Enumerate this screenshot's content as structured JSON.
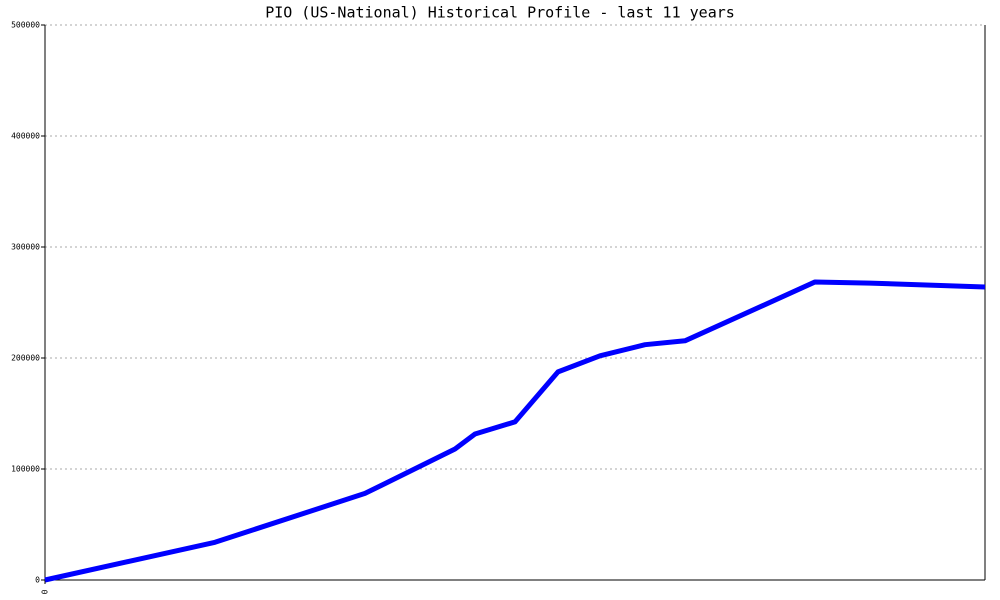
{
  "chart_data": {
    "type": "line",
    "title": "PIO (US-National) Historical Profile - last 11 years",
    "x": [
      0,
      170,
      320,
      410,
      430,
      470,
      513,
      555,
      600,
      640,
      770,
      825,
      940
    ],
    "series": [
      {
        "color": "#0000ff",
        "values": [
          0,
          34000,
          78000,
          118000,
          131500,
          142500,
          187500,
          202000,
          212000,
          215500,
          268500,
          267500,
          264000
        ]
      }
    ],
    "xlim": [
      0,
      940
    ],
    "xticks": [
      0
    ],
    "ylim": [
      0,
      500000
    ],
    "yticks": [
      0,
      100000,
      200000,
      300000,
      400000,
      500000
    ],
    "grid": true
  }
}
